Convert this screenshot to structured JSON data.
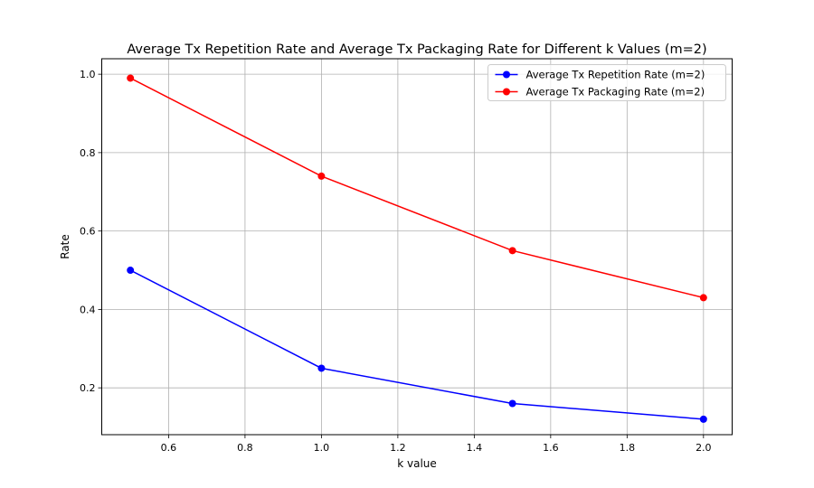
{
  "chart_data": {
    "type": "line",
    "title": "Average Tx Repetition Rate and Average Tx Packaging Rate for Different k Values (m=2)",
    "xlabel": "k value",
    "ylabel": "Rate",
    "x": [
      0.5,
      1.0,
      1.5,
      2.0
    ],
    "xlim": [
      0.425,
      2.075
    ],
    "ylim": [
      0.0805,
      1.0395
    ],
    "xticks": [
      0.6,
      0.8,
      1.0,
      1.2,
      1.4,
      1.6,
      1.8,
      2.0
    ],
    "yticks": [
      0.2,
      0.4,
      0.6,
      0.8,
      1.0
    ],
    "xtick_labels": [
      "0.6",
      "0.8",
      "1.0",
      "1.2",
      "1.4",
      "1.6",
      "1.8",
      "2.0"
    ],
    "ytick_labels": [
      "0.2",
      "0.4",
      "0.6",
      "0.8",
      "1.0"
    ],
    "grid": true,
    "legend_position": "top-right",
    "series": [
      {
        "name": "Average Tx Repetition Rate (m=2)",
        "color": "#0000ff",
        "values": [
          0.5,
          0.25,
          0.16,
          0.12
        ]
      },
      {
        "name": "Average Tx Packaging Rate (m=2)",
        "color": "#ff0000",
        "values": [
          0.99,
          0.74,
          0.55,
          0.43
        ]
      }
    ]
  }
}
